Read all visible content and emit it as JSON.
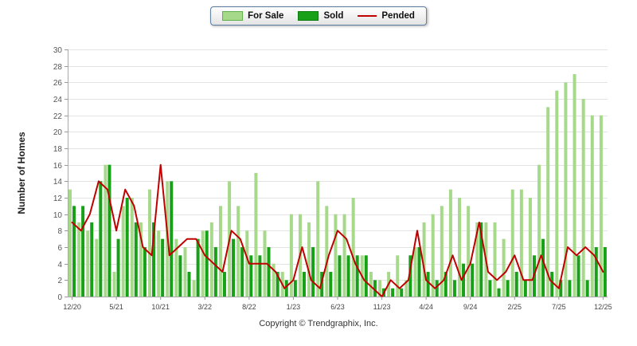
{
  "y_axis": {
    "title": "Number of Homes",
    "min": 0,
    "max": 30,
    "step": 2
  },
  "footer": {
    "copyright": "Copyright © Trendgraphix, Inc."
  },
  "legend": {
    "items": [
      {
        "label": "For Sale",
        "color": "#a6d98a"
      },
      {
        "label": "Sold",
        "color": "#18a018"
      },
      {
        "label": "Pended",
        "color": "#c00000"
      }
    ]
  },
  "chart_data": {
    "type": "bar",
    "title": "",
    "xlabel": "",
    "ylabel": "Number of Homes",
    "ylim": [
      0,
      30
    ],
    "y_step": 2,
    "grid": true,
    "legend_position": "top-center",
    "x_tick_every": 5,
    "x": [
      "12/20",
      "1/21",
      "2/21",
      "3/21",
      "4/21",
      "5/21",
      "6/21",
      "7/21",
      "8/21",
      "9/21",
      "10/21",
      "11/21",
      "12/21",
      "1/22",
      "2/22",
      "3/22",
      "4/22",
      "5/22",
      "6/22",
      "7/22",
      "8/22",
      "9/22",
      "10/22",
      "11/22",
      "12/22",
      "1/23",
      "2/23",
      "3/23",
      "4/23",
      "5/23",
      "6/23",
      "7/23",
      "8/23",
      "9/23",
      "10/23",
      "11/23",
      "12/23",
      "1/24",
      "2/24",
      "3/24",
      "4/24",
      "5/24",
      "6/24",
      "7/24",
      "8/24",
      "9/24",
      "10/24",
      "11/24",
      "12/24",
      "1/25",
      "2/25",
      "3/25",
      "4/25",
      "5/25",
      "6/25",
      "7/25",
      "8/25",
      "9/25",
      "10/25",
      "11/25",
      "12/25"
    ],
    "series": [
      {
        "name": "For Sale",
        "render": "bar",
        "color": "#a6d98a",
        "values": [
          13,
          9,
          8,
          7,
          16,
          3,
          11,
          12,
          9,
          13,
          8,
          14,
          7,
          6,
          2,
          8,
          9,
          11,
          14,
          11,
          8,
          15,
          8,
          4,
          3,
          10,
          10,
          9,
          14,
          11,
          10,
          10,
          12,
          5,
          3,
          2,
          3,
          5,
          2,
          6,
          9,
          10,
          11,
          13,
          12,
          11,
          9,
          9,
          9,
          7,
          13,
          13,
          12,
          16,
          23,
          25,
          26,
          27,
          24,
          22,
          22
        ]
      },
      {
        "name": "Sold",
        "render": "bar",
        "color": "#18a018",
        "values": [
          11,
          11,
          9,
          14,
          16,
          7,
          12,
          9,
          6,
          9,
          7,
          14,
          5,
          3,
          7,
          8,
          6,
          3,
          7,
          6,
          5,
          5,
          6,
          3,
          2,
          2,
          3,
          6,
          3,
          3,
          5,
          5,
          5,
          5,
          2,
          1,
          1,
          1,
          5,
          6,
          3,
          2,
          3,
          2,
          4,
          4,
          9,
          2,
          1,
          2,
          3,
          2,
          5,
          7,
          3,
          2,
          2,
          5,
          2,
          6,
          6
        ]
      },
      {
        "name": "Pended",
        "render": "line",
        "color": "#c00000",
        "values": [
          9,
          8,
          10,
          14,
          13,
          8,
          13,
          11,
          6,
          5,
          16,
          5,
          6,
          7,
          7,
          5,
          4,
          3,
          8,
          7,
          4,
          4,
          4,
          3,
          1,
          2,
          6,
          2,
          1,
          5,
          8,
          7,
          4,
          2,
          1,
          0,
          2,
          1,
          2,
          8,
          2,
          1,
          2,
          5,
          2,
          4,
          9,
          3,
          2,
          3,
          5,
          2,
          2,
          5,
          2,
          1,
          6,
          5,
          6,
          5,
          3
        ]
      }
    ]
  }
}
